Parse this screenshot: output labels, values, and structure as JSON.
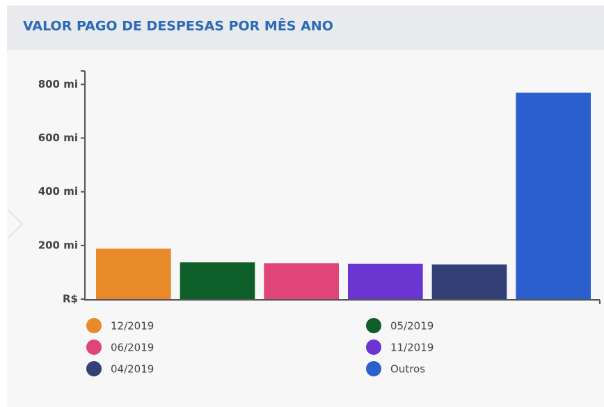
{
  "chart_data": {
    "type": "bar",
    "title": "VALOR PAGO DE DESPESAS POR MÊS ANO",
    "categories": [
      "12/2019",
      "05/2019",
      "06/2019",
      "11/2019",
      "04/2019",
      "Outros"
    ],
    "values": [
      188,
      137,
      134,
      132,
      129,
      769
    ],
    "colors": [
      "#e8892a",
      "#0e5e2a",
      "#e04579",
      "#6a35d0",
      "#334076",
      "#2b5fce"
    ],
    "ylim": [
      0,
      850
    ],
    "yticks": [
      {
        "value": 0,
        "label": "R$"
      },
      {
        "value": 200,
        "label": "200 mi"
      },
      {
        "value": 400,
        "label": "400 mi"
      },
      {
        "value": 600,
        "label": "600 mi"
      },
      {
        "value": 800,
        "label": "800 mi"
      }
    ]
  }
}
